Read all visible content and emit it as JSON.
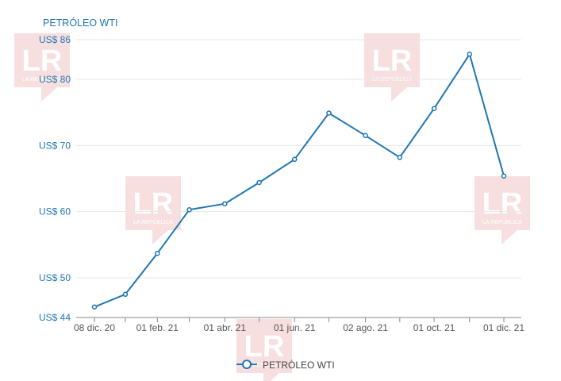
{
  "chart_data": {
    "type": "line",
    "title": "PETRÓLEO WTI",
    "xlabel": "",
    "ylabel": "",
    "x": [
      "2020-12-08",
      "2021-01-04",
      "2021-02-01",
      "2021-03-01",
      "2021-04-01",
      "2021-05-01",
      "2021-06-01",
      "2021-07-01",
      "2021-08-02",
      "2021-09-01",
      "2021-10-01",
      "2021-11-01",
      "2021-12-01"
    ],
    "series": [
      {
        "name": "PETRÓLEO WTI",
        "values": [
          45.6,
          47.5,
          53.7,
          60.3,
          61.2,
          64.4,
          67.9,
          74.9,
          71.5,
          68.2,
          75.6,
          83.8,
          65.4
        ]
      }
    ],
    "ylim": [
      44,
      86
    ],
    "y_ticks": [
      44,
      50,
      60,
      70,
      80,
      86
    ],
    "y_tick_labels": [
      "US$ 44",
      "US$ 50",
      "US$ 60",
      "US$ 70",
      "US$ 80",
      "US$ 86"
    ],
    "x_tick_labels": [
      "08 dic. 20",
      "01 feb. 21",
      "01 abr. 21",
      "01 jun. 21",
      "02 ago. 21",
      "01 oct. 21",
      "01 dic. 21"
    ],
    "x_tick_indices": [
      0,
      2,
      4,
      6,
      8,
      10,
      12
    ],
    "grid": true,
    "legend": "bottom-center",
    "line_color": "#1f77b4",
    "axis_label_color": "#1f77b4",
    "grid_color": "#e6e6e6"
  },
  "watermark": {
    "text": "LR",
    "subtext": "LA REPÚBLICA",
    "color": "#e07070"
  }
}
